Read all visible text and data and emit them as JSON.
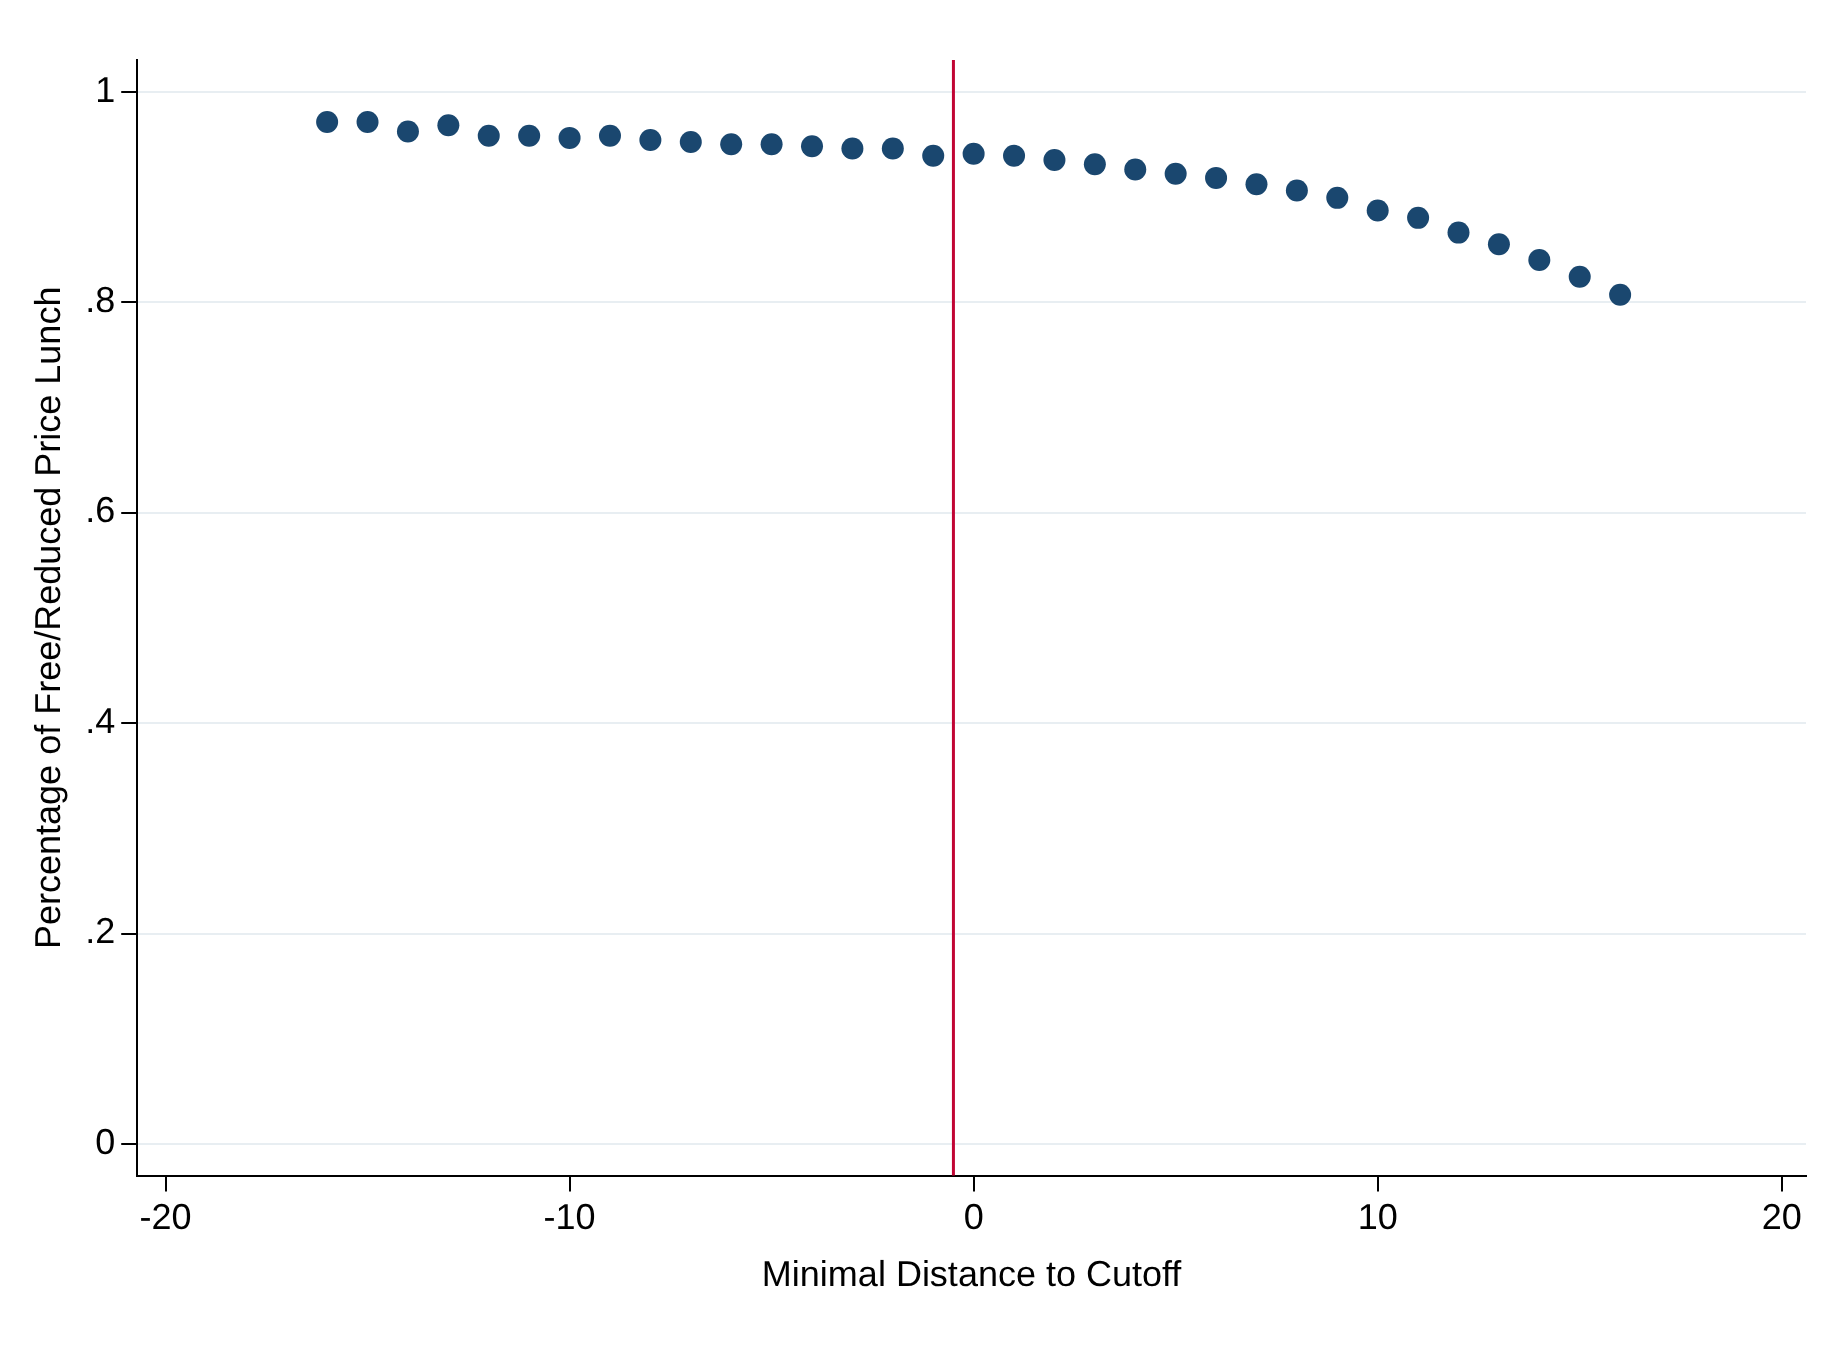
{
  "chart_data": {
    "type": "scatter",
    "xlabel": "Minimal Distance to Cutoff",
    "ylabel": "Percentage of Free/Reduced Price Lunch",
    "x": [
      -16,
      -15,
      -14,
      -13,
      -12,
      -11,
      -10,
      -9,
      -8,
      -7,
      -6,
      -5,
      -4,
      -3,
      -2,
      -1,
      0,
      1,
      2,
      3,
      4,
      5,
      6,
      7,
      8,
      9,
      10,
      11,
      12,
      13,
      14,
      15,
      16
    ],
    "series": [
      {
        "color": "#1a476f",
        "values": [
          0.971,
          0.971,
          0.962,
          0.968,
          0.958,
          0.958,
          0.956,
          0.958,
          0.954,
          0.952,
          0.95,
          0.95,
          0.948,
          0.946,
          0.946,
          0.939,
          0.941,
          0.939,
          0.935,
          0.931,
          0.926,
          0.922,
          0.918,
          0.912,
          0.906,
          0.899,
          0.887,
          0.88,
          0.866,
          0.855,
          0.84,
          0.824,
          0.807
        ]
      }
    ],
    "xlim": [
      -20.7,
      20.6
    ],
    "xticks": [
      -20,
      -10,
      0,
      10,
      20
    ],
    "ylim": [
      -0.03,
      1.03
    ],
    "yticks": [
      0,
      {
        "value": 0.2,
        "label": ".2"
      },
      {
        "value": 0.4,
        "label": ".4"
      },
      {
        "value": 0.6,
        "label": ".6"
      },
      {
        "value": 0.8,
        "label": ".8"
      },
      1
    ],
    "ref_lines": [
      {
        "axis": "x",
        "value": -0.5,
        "color": "#c10534"
      }
    ],
    "grid": "y",
    "legend": false,
    "marker": "circle"
  }
}
